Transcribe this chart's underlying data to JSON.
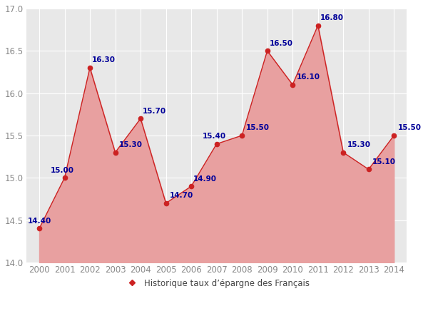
{
  "years": [
    2000,
    2001,
    2002,
    2003,
    2004,
    2005,
    2006,
    2007,
    2008,
    2009,
    2010,
    2011,
    2012,
    2013,
    2014
  ],
  "values": [
    14.4,
    15.0,
    16.3,
    15.3,
    15.7,
    14.7,
    14.9,
    15.4,
    15.5,
    16.5,
    16.1,
    16.8,
    15.3,
    15.1,
    15.5
  ],
  "ylim": [
    14.0,
    17.0
  ],
  "yticks": [
    14.0,
    14.5,
    15.0,
    15.5,
    16.0,
    16.5,
    17.0
  ],
  "line_color": "#cc2222",
  "fill_color": "#e8a0a0",
  "marker_color": "#cc2222",
  "label_color": "#000099",
  "legend_label": "Historique taux d’épargne des Français",
  "fig_bg_color": "#ffffff",
  "plot_bg_color": "#e8e8e8",
  "grid_color": "#ffffff",
  "tick_color": "#888888",
  "label_fontsize": 7.5,
  "tick_fontsize": 8.5
}
